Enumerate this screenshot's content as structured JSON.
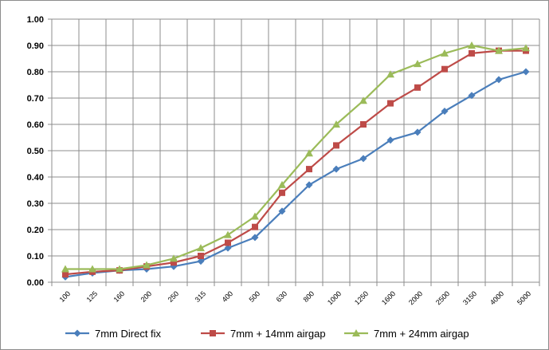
{
  "chart_data": {
    "type": "line",
    "categories": [
      "100",
      "125",
      "160",
      "200",
      "250",
      "315",
      "400",
      "500",
      "630",
      "800",
      "1000",
      "1250",
      "1600",
      "2000",
      "2500",
      "3150",
      "4000",
      "5000"
    ],
    "ylim": [
      0,
      1
    ],
    "yticks": [
      "0.00",
      "0.10",
      "0.20",
      "0.30",
      "0.40",
      "0.50",
      "0.60",
      "0.70",
      "0.80",
      "0.90",
      "1.00"
    ],
    "grid": true,
    "legend_position": "bottom",
    "series": [
      {
        "name": "7mm Direct fix",
        "color": "#4a7ebb",
        "marker": "diamond",
        "values": [
          0.02,
          0.035,
          0.045,
          0.05,
          0.06,
          0.08,
          0.13,
          0.17,
          0.27,
          0.37,
          0.43,
          0.47,
          0.54,
          0.57,
          0.65,
          0.71,
          0.77,
          0.8
        ]
      },
      {
        "name": "7mm + 14mm airgap",
        "color": "#be4b48",
        "marker": "square",
        "values": [
          0.03,
          0.04,
          0.045,
          0.06,
          0.075,
          0.1,
          0.15,
          0.21,
          0.34,
          0.43,
          0.52,
          0.6,
          0.68,
          0.74,
          0.81,
          0.87,
          0.88,
          0.88
        ]
      },
      {
        "name": "7mm + 24mm airgap",
        "color": "#9bbb59",
        "marker": "triangle",
        "values": [
          0.05,
          0.05,
          0.05,
          0.065,
          0.09,
          0.13,
          0.18,
          0.25,
          0.37,
          0.49,
          0.6,
          0.69,
          0.79,
          0.83,
          0.87,
          0.9,
          0.88,
          0.89
        ]
      }
    ]
  }
}
